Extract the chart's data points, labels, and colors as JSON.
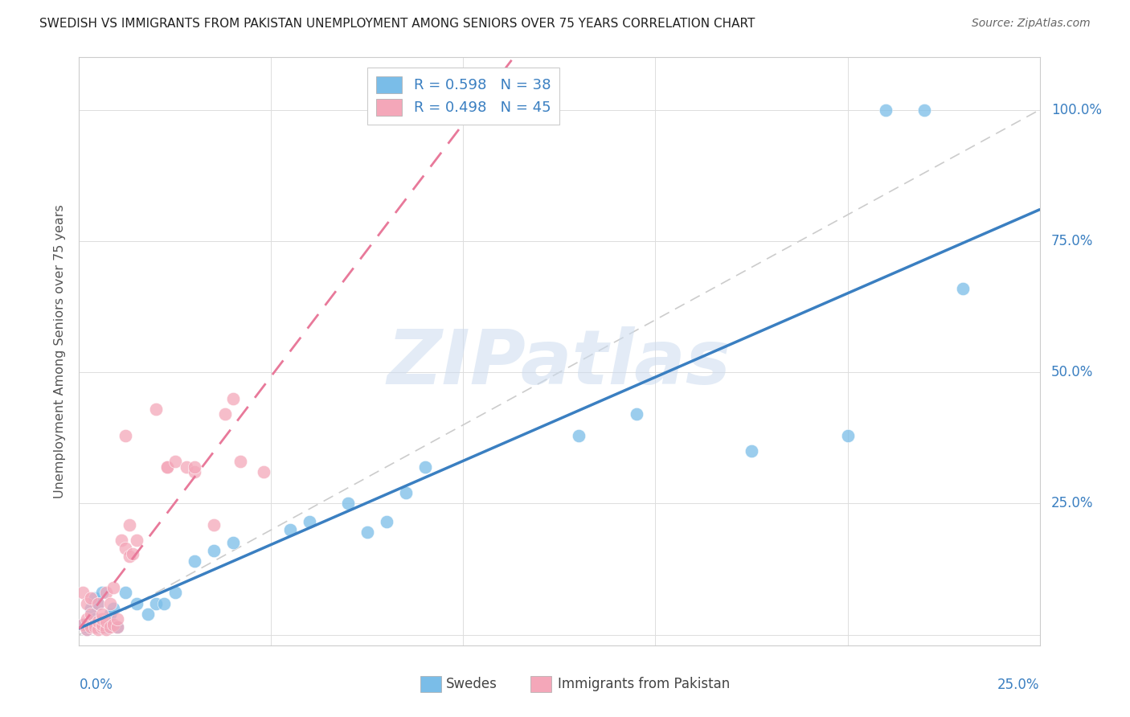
{
  "title": "SWEDISH VS IMMIGRANTS FROM PAKISTAN UNEMPLOYMENT AMONG SENIORS OVER 75 YEARS CORRELATION CHART",
  "source": "Source: ZipAtlas.com",
  "ylabel": "Unemployment Among Seniors over 75 years",
  "r_swedes": "R = 0.598",
  "n_swedes": "N = 38",
  "r_pakistan": "R = 0.498",
  "n_pakistan": "N = 45",
  "watermark": "ZIPatlas",
  "blue_color": "#7abde8",
  "pink_color": "#f4a7b9",
  "blue_line_color": "#3a7fc1",
  "pink_line_color": "#e8799a",
  "text_blue": "#3a7fc1",
  "swedes_x": [
    0.001,
    0.002,
    0.002,
    0.003,
    0.003,
    0.004,
    0.004,
    0.005,
    0.005,
    0.006,
    0.006,
    0.007,
    0.008,
    0.009,
    0.01,
    0.012,
    0.015,
    0.018,
    0.02,
    0.022,
    0.025,
    0.03,
    0.035,
    0.04,
    0.055,
    0.06,
    0.07,
    0.075,
    0.08,
    0.085,
    0.09,
    0.13,
    0.145,
    0.175,
    0.2,
    0.21,
    0.22,
    0.23
  ],
  "swedes_y": [
    0.02,
    0.01,
    0.015,
    0.025,
    0.05,
    0.03,
    0.07,
    0.015,
    0.06,
    0.02,
    0.08,
    0.015,
    0.04,
    0.05,
    0.015,
    0.08,
    0.06,
    0.04,
    0.06,
    0.06,
    0.08,
    0.14,
    0.16,
    0.175,
    0.2,
    0.215,
    0.25,
    0.195,
    0.215,
    0.27,
    0.32,
    0.38,
    0.42,
    0.35,
    0.38,
    1.0,
    1.0,
    0.66
  ],
  "pakistan_x": [
    0.001,
    0.001,
    0.002,
    0.002,
    0.002,
    0.003,
    0.003,
    0.003,
    0.004,
    0.004,
    0.005,
    0.005,
    0.005,
    0.006,
    0.006,
    0.006,
    0.006,
    0.007,
    0.007,
    0.007,
    0.008,
    0.008,
    0.009,
    0.009,
    0.01,
    0.01,
    0.011,
    0.012,
    0.012,
    0.013,
    0.013,
    0.014,
    0.015,
    0.02,
    0.023,
    0.023,
    0.025,
    0.028,
    0.03,
    0.03,
    0.035,
    0.038,
    0.04,
    0.042,
    0.048
  ],
  "pakistan_y": [
    0.02,
    0.08,
    0.01,
    0.03,
    0.06,
    0.015,
    0.04,
    0.07,
    0.02,
    0.015,
    0.01,
    0.025,
    0.06,
    0.015,
    0.02,
    0.03,
    0.04,
    0.01,
    0.025,
    0.08,
    0.015,
    0.06,
    0.02,
    0.09,
    0.015,
    0.03,
    0.18,
    0.165,
    0.38,
    0.15,
    0.21,
    0.155,
    0.18,
    0.43,
    0.32,
    0.32,
    0.33,
    0.32,
    0.31,
    0.32,
    0.21,
    0.42,
    0.45,
    0.33,
    0.31
  ],
  "xlim": [
    0.0,
    0.25
  ],
  "ylim": [
    -0.02,
    1.1
  ],
  "background_color": "#ffffff",
  "grid_color": "#dddddd"
}
